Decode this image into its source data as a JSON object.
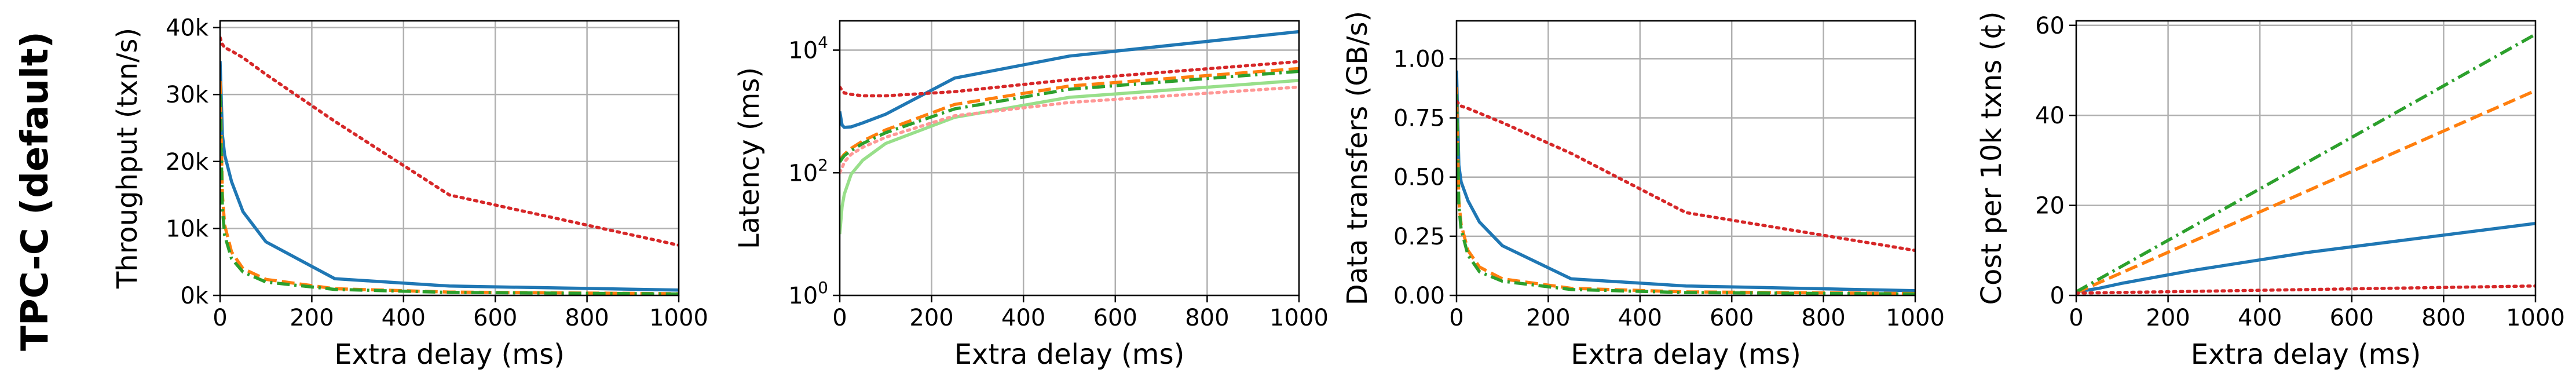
{
  "row_label": "TPC-C (default)",
  "colors": {
    "blue": "#1f77b4",
    "orange": "#ff7f0e",
    "green": "#2ca02c",
    "red": "#d62728",
    "light_green": "#98df8a",
    "light_red": "#ff9896",
    "grid": "#b0b0b0"
  },
  "chart_data": [
    {
      "type": "line",
      "xlabel": "Extra delay (ms)",
      "ylabel": "Throughput (txn/s)",
      "xlim": [
        0,
        1000
      ],
      "ylim": [
        0,
        41000
      ],
      "yscale": "linear",
      "grid": true,
      "xticks": [
        0,
        200,
        400,
        600,
        800,
        1000
      ],
      "xtick_labels": [
        "0",
        "200",
        "400",
        "600",
        "800",
        "1000"
      ],
      "yticks": [
        0,
        10000,
        20000,
        30000,
        40000
      ],
      "ytick_labels": [
        "0k",
        "10k",
        "20k",
        "30k",
        "40k"
      ],
      "series": [
        {
          "color": "#1f77b4",
          "dash": "solid",
          "x": [
            0,
            5,
            10,
            25,
            50,
            100,
            250,
            500,
            1000
          ],
          "y": [
            35000,
            24000,
            21000,
            17000,
            12500,
            8000,
            2500,
            1400,
            800
          ]
        },
        {
          "color": "#ff7f0e",
          "dash": "dashed",
          "x": [
            0,
            5,
            10,
            25,
            50,
            100,
            250,
            500,
            1000
          ],
          "y": [
            32000,
            15000,
            10500,
            6500,
            4000,
            2400,
            1000,
            500,
            250
          ]
        },
        {
          "color": "#2ca02c",
          "dash": "dashdot",
          "x": [
            0,
            5,
            10,
            25,
            50,
            100,
            250,
            500,
            1000
          ],
          "y": [
            30000,
            13000,
            9000,
            5500,
            3500,
            2000,
            900,
            450,
            220
          ]
        },
        {
          "color": "#d62728",
          "dash": "dotted",
          "x": [
            0,
            5,
            10,
            25,
            50,
            100,
            250,
            500,
            1000
          ],
          "y": [
            38500,
            37500,
            37000,
            36500,
            35500,
            33000,
            26000,
            15000,
            7500
          ]
        }
      ]
    },
    {
      "type": "line",
      "xlabel": "Extra delay (ms)",
      "ylabel": "Latency (ms)",
      "xlim": [
        0,
        1000
      ],
      "ylim": [
        1,
        30000
      ],
      "yscale": "log",
      "grid": true,
      "xticks": [
        0,
        200,
        400,
        600,
        800,
        1000
      ],
      "xtick_labels": [
        "0",
        "200",
        "400",
        "600",
        "800",
        "1000"
      ],
      "yticks": [
        1,
        100,
        10000
      ],
      "ytick_labels": [
        [
          "10",
          "0"
        ],
        [
          "10",
          "2"
        ],
        [
          "10",
          "4"
        ]
      ],
      "series": [
        {
          "color": "#1f77b4",
          "dash": "solid",
          "x": [
            0,
            5,
            10,
            25,
            50,
            100,
            250,
            500,
            1000
          ],
          "y": [
            1000,
            600,
            550,
            560,
            650,
            900,
            3500,
            8000,
            20000
          ]
        },
        {
          "color": "#ff7f0e",
          "dash": "dashed",
          "x": [
            0,
            5,
            10,
            25,
            50,
            100,
            250,
            500,
            1000
          ],
          "y": [
            150,
            180,
            200,
            250,
            330,
            500,
            1300,
            2600,
            5000
          ]
        },
        {
          "color": "#2ca02c",
          "dash": "dashdot",
          "x": [
            0,
            5,
            10,
            25,
            50,
            100,
            250,
            500,
            1000
          ],
          "y": [
            150,
            170,
            190,
            230,
            300,
            450,
            1100,
            2300,
            4500
          ]
        },
        {
          "color": "#d62728",
          "dash": "dotted",
          "x": [
            0,
            5,
            10,
            25,
            50,
            100,
            250,
            500,
            1000
          ],
          "y": [
            2500,
            2200,
            2000,
            1900,
            1800,
            1800,
            2100,
            3300,
            6500
          ]
        },
        {
          "color": "#98df8a",
          "dash": "solid",
          "x": [
            0,
            5,
            10,
            25,
            50,
            100,
            250,
            500,
            1000
          ],
          "y": [
            10,
            28,
            45,
            95,
            160,
            300,
            800,
            1700,
            3200
          ]
        },
        {
          "color": "#ff9896",
          "dash": "dotted",
          "x": [
            0,
            5,
            10,
            25,
            50,
            100,
            250,
            500,
            1000
          ],
          "y": [
            100,
            120,
            150,
            200,
            260,
            380,
            850,
            1400,
            2500
          ]
        }
      ]
    },
    {
      "type": "line",
      "xlabel": "Extra delay (ms)",
      "ylabel": "Data transfers (GB/s)",
      "xlim": [
        0,
        1000
      ],
      "ylim": [
        0,
        1.16
      ],
      "yscale": "linear",
      "grid": true,
      "xticks": [
        0,
        200,
        400,
        600,
        800,
        1000
      ],
      "xtick_labels": [
        "0",
        "200",
        "400",
        "600",
        "800",
        "1000"
      ],
      "yticks": [
        0,
        0.25,
        0.5,
        0.75,
        1.0
      ],
      "ytick_labels": [
        "0.00",
        "0.25",
        "0.50",
        "0.75",
        "1.00"
      ],
      "series": [
        {
          "color": "#1f77b4",
          "dash": "solid",
          "x": [
            0,
            5,
            10,
            25,
            50,
            100,
            250,
            500,
            1000
          ],
          "y": [
            0.95,
            0.55,
            0.48,
            0.4,
            0.31,
            0.21,
            0.07,
            0.04,
            0.02
          ]
        },
        {
          "color": "#ff7f0e",
          "dash": "dashed",
          "x": [
            0,
            5,
            10,
            25,
            50,
            100,
            250,
            500,
            1000
          ],
          "y": [
            0.88,
            0.4,
            0.3,
            0.19,
            0.12,
            0.07,
            0.03,
            0.015,
            0.008
          ]
        },
        {
          "color": "#2ca02c",
          "dash": "dashdot",
          "x": [
            0,
            5,
            10,
            25,
            50,
            100,
            250,
            500,
            1000
          ],
          "y": [
            0.85,
            0.38,
            0.28,
            0.17,
            0.1,
            0.06,
            0.025,
            0.012,
            0.006
          ]
        },
        {
          "color": "#d62728",
          "dash": "dotted",
          "x": [
            0,
            5,
            10,
            25,
            50,
            100,
            250,
            500,
            1000
          ],
          "y": [
            0.82,
            0.81,
            0.8,
            0.79,
            0.77,
            0.73,
            0.6,
            0.35,
            0.19
          ]
        }
      ]
    },
    {
      "type": "line",
      "xlabel": "Extra delay (ms)",
      "ylabel": "Cost per 10k txns (¢)",
      "xlim": [
        0,
        1000
      ],
      "ylim": [
        0,
        61
      ],
      "yscale": "linear",
      "grid": true,
      "xticks": [
        0,
        200,
        400,
        600,
        800,
        1000
      ],
      "xtick_labels": [
        "0",
        "200",
        "400",
        "600",
        "800",
        "1000"
      ],
      "yticks": [
        0,
        20,
        40,
        60
      ],
      "ytick_labels": [
        "0",
        "20",
        "40",
        "60"
      ],
      "series": [
        {
          "color": "#1f77b4",
          "dash": "solid",
          "x": [
            0,
            50,
            100,
            250,
            500,
            1000
          ],
          "y": [
            0.8,
            1.6,
            2.7,
            5.5,
            9.5,
            16
          ]
        },
        {
          "color": "#ff7f0e",
          "dash": "dashed",
          "x": [
            0,
            1000
          ],
          "y": [
            0.6,
            45.5
          ]
        },
        {
          "color": "#2ca02c",
          "dash": "dashdot",
          "x": [
            0,
            1000
          ],
          "y": [
            0.8,
            58
          ]
        },
        {
          "color": "#d62728",
          "dash": "dotted",
          "x": [
            0,
            250,
            500,
            1000
          ],
          "y": [
            0.5,
            0.9,
            1.3,
            2.1
          ]
        }
      ]
    }
  ]
}
